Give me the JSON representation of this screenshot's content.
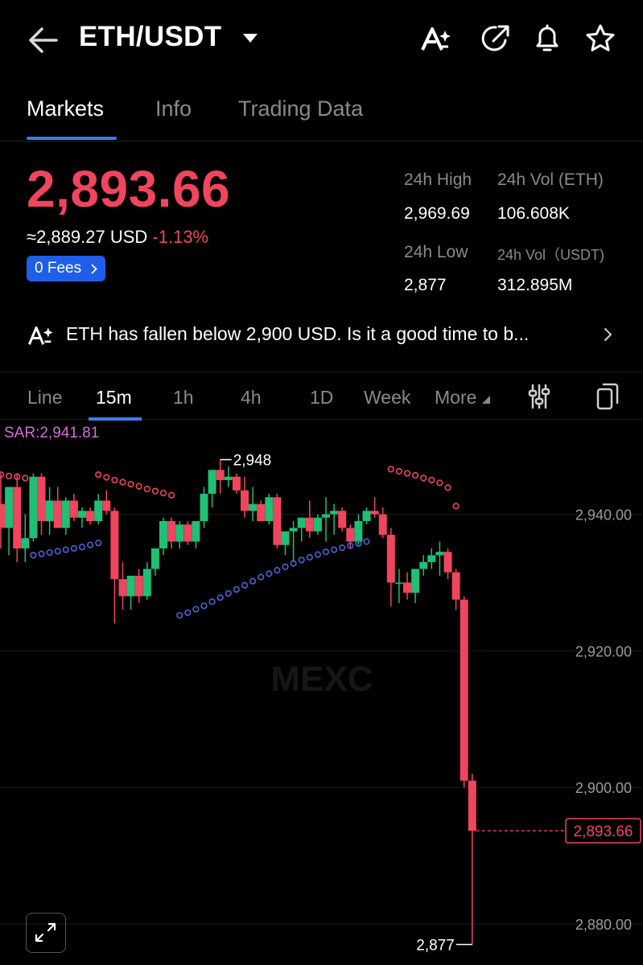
{
  "header": {
    "pair": "ETH/USDT",
    "icons": [
      "back-arrow-icon",
      "caret-down-icon",
      "ai-icon",
      "share-icon",
      "bell-icon",
      "star-icon"
    ]
  },
  "tabs": [
    "Markets",
    "Info",
    "Trading Data"
  ],
  "ticker": {
    "price": "2,893.66",
    "approx": "≈2,889.27 USD",
    "change": "-1.13%",
    "fees": "0 Fees",
    "high_label": "24h High",
    "high_value": "2,969.69",
    "vol_eth_label": "24h Vol (ETH)",
    "vol_eth_value": "106.608K",
    "low_label": "24h Low",
    "low_value": "2,877",
    "vol_usdt_label": "24h Vol（USDT)",
    "vol_usdt_value": "312.895M",
    "down_color": "#f0455e",
    "up_color": "#1fbf75"
  },
  "news": {
    "text": "ETH has fallen below 2,900 USD. Is it a good time to b..."
  },
  "intervals": {
    "items": [
      "Line",
      "15m",
      "1h",
      "4h",
      "1D",
      "Week",
      "More"
    ],
    "active": "15m"
  },
  "chart_data": {
    "type": "candlestick",
    "indicator": "SAR:2,941.81",
    "watermark": "MEXC",
    "y_ticks": [
      "2,940.00",
      "2,920.00",
      "2,900.00",
      "2,880.00"
    ],
    "y_tick_values": [
      2940,
      2920,
      2900,
      2880
    ],
    "ylim": [
      2874,
      2953.6
    ],
    "high_marker": "2,948",
    "low_marker": "2,877",
    "current_price": "2,893.66",
    "current_value": 2893.66,
    "candles": [
      {
        "o": 2941.5,
        "h": 2946.0,
        "l": 2935.0,
        "c": 2938.0
      },
      {
        "o": 2938.0,
        "h": 2944.0,
        "l": 2934.0,
        "c": 2944.0
      },
      {
        "o": 2944.0,
        "h": 2946.0,
        "l": 2933.0,
        "c": 2935.0
      },
      {
        "o": 2935.0,
        "h": 2940.0,
        "l": 2933.0,
        "c": 2936.5
      },
      {
        "o": 2936.5,
        "h": 2946.0,
        "l": 2936.0,
        "c": 2945.5
      },
      {
        "o": 2945.5,
        "h": 2946.0,
        "l": 2937.0,
        "c": 2939.0
      },
      {
        "o": 2939.0,
        "h": 2944.0,
        "l": 2937.0,
        "c": 2942.0
      },
      {
        "o": 2942.0,
        "h": 2944.0,
        "l": 2938.0,
        "c": 2938.0
      },
      {
        "o": 2938.0,
        "h": 2942.5,
        "l": 2937.0,
        "c": 2942.0
      },
      {
        "o": 2942.0,
        "h": 2943.0,
        "l": 2939.0,
        "c": 2939.5
      },
      {
        "o": 2939.5,
        "h": 2941.0,
        "l": 2938.0,
        "c": 2940.5
      },
      {
        "o": 2940.5,
        "h": 2941.0,
        "l": 2938.5,
        "c": 2939.0
      },
      {
        "o": 2939.0,
        "h": 2943.0,
        "l": 2938.5,
        "c": 2942.0
      },
      {
        "o": 2942.0,
        "h": 2943.5,
        "l": 2940.0,
        "c": 2940.5
      },
      {
        "o": 2940.5,
        "h": 2941.0,
        "l": 2924.0,
        "c": 2930.5
      },
      {
        "o": 2930.5,
        "h": 2933.0,
        "l": 2926.0,
        "c": 2928.0
      },
      {
        "o": 2928.0,
        "h": 2931.0,
        "l": 2926.0,
        "c": 2931.0
      },
      {
        "o": 2931.0,
        "h": 2932.0,
        "l": 2927.0,
        "c": 2928.0
      },
      {
        "o": 2928.0,
        "h": 2933.0,
        "l": 2927.5,
        "c": 2932.0
      },
      {
        "o": 2932.0,
        "h": 2935.0,
        "l": 2931.0,
        "c": 2935.0
      },
      {
        "o": 2935.0,
        "h": 2939.5,
        "l": 2934.0,
        "c": 2939.0
      },
      {
        "o": 2939.0,
        "h": 2939.5,
        "l": 2935.0,
        "c": 2936.0
      },
      {
        "o": 2936.0,
        "h": 2939.0,
        "l": 2935.0,
        "c": 2938.5
      },
      {
        "o": 2938.5,
        "h": 2939.0,
        "l": 2935.5,
        "c": 2936.0
      },
      {
        "o": 2936.0,
        "h": 2939.0,
        "l": 2935.0,
        "c": 2939.0
      },
      {
        "o": 2939.0,
        "h": 2944.0,
        "l": 2938.0,
        "c": 2943.0
      },
      {
        "o": 2943.0,
        "h": 2946.5,
        "l": 2941.0,
        "c": 2946.5
      },
      {
        "o": 2946.5,
        "h": 2948.0,
        "l": 2943.0,
        "c": 2945.0
      },
      {
        "o": 2945.0,
        "h": 2947.0,
        "l": 2944.0,
        "c": 2945.5
      },
      {
        "o": 2945.5,
        "h": 2946.0,
        "l": 2943.0,
        "c": 2943.5
      },
      {
        "o": 2943.5,
        "h": 2945.5,
        "l": 2939.5,
        "c": 2940.5
      },
      {
        "o": 2940.5,
        "h": 2944.0,
        "l": 2939.0,
        "c": 2941.5
      },
      {
        "o": 2941.5,
        "h": 2942.0,
        "l": 2939.0,
        "c": 2939.0
      },
      {
        "o": 2939.0,
        "h": 2943.0,
        "l": 2938.5,
        "c": 2942.5
      },
      {
        "o": 2942.5,
        "h": 2943.0,
        "l": 2935.0,
        "c": 2935.5
      },
      {
        "o": 2935.5,
        "h": 2937.0,
        "l": 2934.0,
        "c": 2937.5
      },
      {
        "o": 2937.5,
        "h": 2939.0,
        "l": 2933.0,
        "c": 2938.0
      },
      {
        "o": 2938.0,
        "h": 2939.5,
        "l": 2936.0,
        "c": 2939.5
      },
      {
        "o": 2939.5,
        "h": 2942.0,
        "l": 2936.5,
        "c": 2937.5
      },
      {
        "o": 2937.5,
        "h": 2940.0,
        "l": 2937.0,
        "c": 2939.5
      },
      {
        "o": 2939.5,
        "h": 2942.5,
        "l": 2936.0,
        "c": 2940.0
      },
      {
        "o": 2940.0,
        "h": 2941.5,
        "l": 2937.0,
        "c": 2940.5
      },
      {
        "o": 2940.5,
        "h": 2941.0,
        "l": 2937.5,
        "c": 2938.0
      },
      {
        "o": 2938.0,
        "h": 2938.5,
        "l": 2935.0,
        "c": 2936.0
      },
      {
        "o": 2936.0,
        "h": 2940.0,
        "l": 2935.5,
        "c": 2939.0
      },
      {
        "o": 2939.0,
        "h": 2941.0,
        "l": 2938.5,
        "c": 2940.5
      },
      {
        "o": 2940.5,
        "h": 2942.5,
        "l": 2939.5,
        "c": 2940.0
      },
      {
        "o": 2940.0,
        "h": 2941.0,
        "l": 2936.5,
        "c": 2937.0
      },
      {
        "o": 2937.0,
        "h": 2938.0,
        "l": 2926.5,
        "c": 2930.0
      },
      {
        "o": 2930.0,
        "h": 2932.0,
        "l": 2927.0,
        "c": 2930.0
      },
      {
        "o": 2930.0,
        "h": 2931.5,
        "l": 2927.5,
        "c": 2928.5
      },
      {
        "o": 2928.5,
        "h": 2932.0,
        "l": 2927.0,
        "c": 2932.0
      },
      {
        "o": 2932.0,
        "h": 2934.0,
        "l": 2931.0,
        "c": 2933.0
      },
      {
        "o": 2933.0,
        "h": 2935.0,
        "l": 2932.0,
        "c": 2934.0
      },
      {
        "o": 2934.0,
        "h": 2936.0,
        "l": 2931.0,
        "c": 2934.5
      },
      {
        "o": 2934.5,
        "h": 2935.0,
        "l": 2930.5,
        "c": 2931.5
      },
      {
        "o": 2931.5,
        "h": 2932.0,
        "l": 2926.0,
        "c": 2927.5
      },
      {
        "o": 2927.5,
        "h": 2928.0,
        "l": 2900.0,
        "c": 2901.0
      },
      {
        "o": 2901.0,
        "h": 2902.0,
        "l": 2877.0,
        "c": 2893.66
      }
    ],
    "sar_above": [
      {
        "i": 0,
        "v": 2945.8
      },
      {
        "i": 1,
        "v": 2945.6
      },
      {
        "i": 2,
        "v": 2945.5
      },
      {
        "i": 3,
        "v": 2945.3
      },
      {
        "i": 12,
        "v": 2945.8
      },
      {
        "i": 13,
        "v": 2945.4
      },
      {
        "i": 14,
        "v": 2945.0
      },
      {
        "i": 15,
        "v": 2944.7
      },
      {
        "i": 16,
        "v": 2944.4
      },
      {
        "i": 17,
        "v": 2944.1
      },
      {
        "i": 18,
        "v": 2943.7
      },
      {
        "i": 19,
        "v": 2943.4
      },
      {
        "i": 20,
        "v": 2943.1
      },
      {
        "i": 21,
        "v": 2942.8
      },
      {
        "i": 48,
        "v": 2946.6
      },
      {
        "i": 49,
        "v": 2946.3
      },
      {
        "i": 50,
        "v": 2946.0
      },
      {
        "i": 51,
        "v": 2945.7
      },
      {
        "i": 52,
        "v": 2945.3
      },
      {
        "i": 53,
        "v": 2945.0
      },
      {
        "i": 54,
        "v": 2944.6
      },
      {
        "i": 55,
        "v": 2943.9
      },
      {
        "i": 56,
        "v": 2941.2
      }
    ],
    "sar_below": [
      {
        "i": 4,
        "v": 2934.0
      },
      {
        "i": 5,
        "v": 2934.2
      },
      {
        "i": 6,
        "v": 2934.4
      },
      {
        "i": 7,
        "v": 2934.6
      },
      {
        "i": 8,
        "v": 2934.8
      },
      {
        "i": 9,
        "v": 2935.0
      },
      {
        "i": 10,
        "v": 2935.2
      },
      {
        "i": 11,
        "v": 2935.5
      },
      {
        "i": 12,
        "v": 2935.8
      },
      {
        "i": 22,
        "v": 2925.2
      },
      {
        "i": 23,
        "v": 2925.6
      },
      {
        "i": 24,
        "v": 2926.1
      },
      {
        "i": 25,
        "v": 2926.6
      },
      {
        "i": 26,
        "v": 2927.2
      },
      {
        "i": 27,
        "v": 2927.8
      },
      {
        "i": 28,
        "v": 2928.4
      },
      {
        "i": 29,
        "v": 2929.0
      },
      {
        "i": 30,
        "v": 2929.6
      },
      {
        "i": 31,
        "v": 2930.2
      },
      {
        "i": 32,
        "v": 2930.8
      },
      {
        "i": 33,
        "v": 2931.3
      },
      {
        "i": 34,
        "v": 2931.8
      },
      {
        "i": 35,
        "v": 2932.3
      },
      {
        "i": 36,
        "v": 2932.8
      },
      {
        "i": 37,
        "v": 2933.3
      },
      {
        "i": 38,
        "v": 2933.7
      },
      {
        "i": 39,
        "v": 2934.1
      },
      {
        "i": 40,
        "v": 2934.5
      },
      {
        "i": 41,
        "v": 2934.8
      },
      {
        "i": 42,
        "v": 2935.1
      },
      {
        "i": 43,
        "v": 2935.4
      },
      {
        "i": 44,
        "v": 2935.7
      },
      {
        "i": 45,
        "v": 2936.0
      }
    ]
  }
}
